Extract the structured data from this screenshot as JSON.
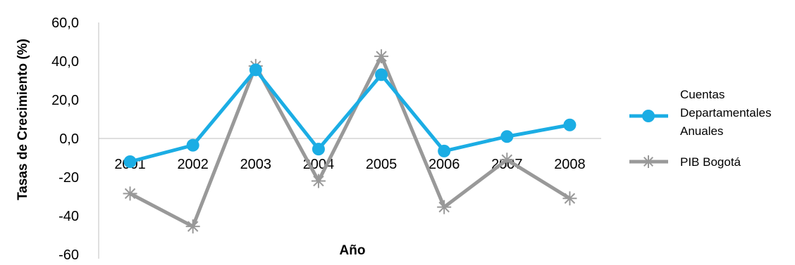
{
  "chart_data": {
    "type": "line",
    "categories": [
      "2001",
      "2002",
      "2003",
      "2004",
      "2005",
      "2006",
      "2007",
      "2008"
    ],
    "series": [
      {
        "name": "Cuentas Departamentales Anuales",
        "values": [
          -12.0,
          -3.5,
          35.5,
          -5.5,
          33.0,
          -6.5,
          1.0,
          7.0
        ],
        "color": "#1BADE4",
        "marker": "circle"
      },
      {
        "name": "PIB Bogotá",
        "values": [
          -28.5,
          -45.5,
          37.5,
          -22.0,
          42.5,
          -35.5,
          -11.0,
          -31.0
        ],
        "color": "#999999",
        "marker": "asterisk"
      }
    ],
    "y_ticks": [
      "-60",
      "-40",
      "-20",
      "0,0",
      "20,0",
      "40,0",
      "60,0"
    ],
    "ylim": [
      -60,
      60
    ],
    "xlabel": "Año",
    "ylabel": "Tasas de Crecimiento  (%)",
    "grid": false,
    "legend_position": "right"
  }
}
